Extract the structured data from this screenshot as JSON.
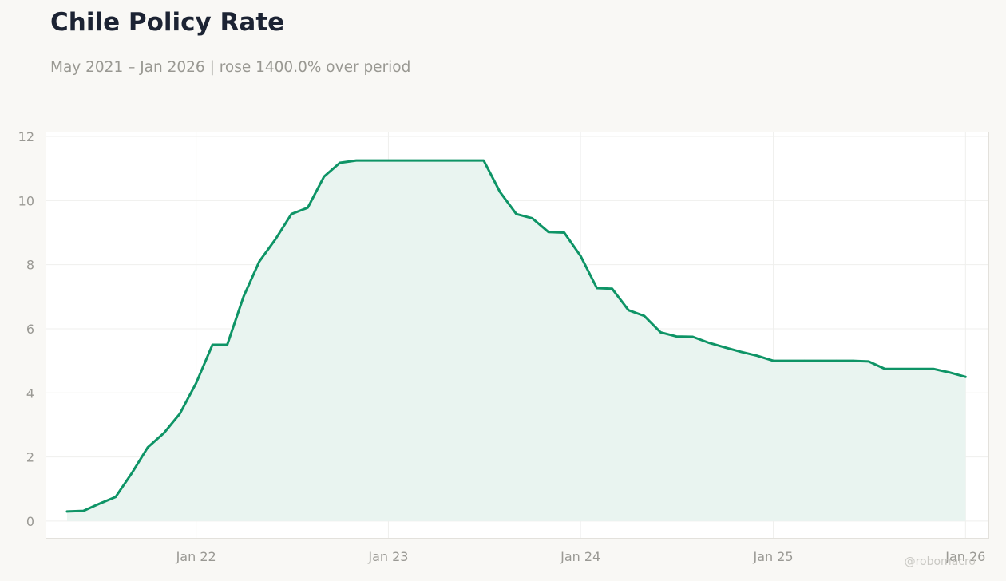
{
  "title": "Chile Policy Rate",
  "subtitle": "May 2021 – Jan 2026 | rose 1400.0% over period",
  "watermark": "@robomacro",
  "colors": {
    "line": "#0e9466",
    "area": "#e9f4f0",
    "background": "#f9f8f5",
    "plot_background": "#ffffff",
    "grid": "#efefed",
    "frame": "#e3e1dc"
  },
  "chart_data": {
    "type": "line",
    "title": "Chile Policy Rate",
    "subtitle": "May 2021 – Jan 2026 | rose 1400.0% over period",
    "xlabel": "",
    "ylabel": "",
    "area_fill": true,
    "grid": true,
    "ylim": [
      -0.55,
      12.15
    ],
    "xlim": [
      "2021-03-21",
      "2026-02-15"
    ],
    "y_ticks": [
      0,
      2,
      4,
      6,
      8,
      10,
      12
    ],
    "x_ticks": [
      {
        "date": "2022-01-01",
        "label": "Jan 22"
      },
      {
        "date": "2023-01-01",
        "label": "Jan 23"
      },
      {
        "date": "2024-01-01",
        "label": "Jan 24"
      },
      {
        "date": "2025-01-01",
        "label": "Jan 25"
      },
      {
        "date": "2026-01-01",
        "label": "Jan 26"
      }
    ],
    "series": [
      {
        "x": [
          "2021-05-01",
          "2021-06-01",
          "2021-07-01",
          "2021-08-01",
          "2021-09-01",
          "2021-10-01",
          "2021-11-01",
          "2021-12-01",
          "2022-01-01",
          "2022-02-01",
          "2022-03-01",
          "2022-04-01",
          "2022-05-01",
          "2022-06-01",
          "2022-07-01",
          "2022-08-01",
          "2022-09-01",
          "2022-10-01",
          "2022-11-01",
          "2022-12-01",
          "2023-01-01",
          "2023-02-01",
          "2023-03-01",
          "2023-04-01",
          "2023-05-01",
          "2023-06-01",
          "2023-07-01",
          "2023-08-01",
          "2023-09-01",
          "2023-10-01",
          "2023-11-01",
          "2023-12-01",
          "2024-01-01",
          "2024-02-01",
          "2024-03-01",
          "2024-04-01",
          "2024-05-01",
          "2024-06-01",
          "2024-07-01",
          "2024-08-01",
          "2024-09-01",
          "2024-10-01",
          "2024-11-01",
          "2024-12-01",
          "2025-01-01",
          "2025-02-01",
          "2025-03-01",
          "2025-04-01",
          "2025-05-01",
          "2025-06-01",
          "2025-07-01",
          "2025-08-01",
          "2025-09-01",
          "2025-10-01",
          "2025-11-01",
          "2025-12-01",
          "2026-01-01"
        ],
        "values": [
          0.3,
          0.32,
          0.54,
          0.75,
          1.5,
          2.3,
          2.75,
          3.35,
          4.3,
          5.5,
          5.5,
          7.0,
          8.1,
          8.8,
          9.58,
          9.78,
          10.75,
          11.18,
          11.25,
          11.25,
          11.25,
          11.25,
          11.25,
          11.25,
          11.25,
          11.25,
          11.25,
          10.27,
          9.58,
          9.45,
          9.02,
          9.0,
          8.27,
          7.27,
          7.25,
          6.58,
          6.4,
          5.89,
          5.76,
          5.75,
          5.56,
          5.42,
          5.28,
          5.16,
          5.0,
          5.0,
          5.0,
          5.0,
          5.0,
          5.0,
          4.98,
          4.75,
          4.75,
          4.75,
          4.75,
          4.64,
          4.5
        ]
      }
    ]
  }
}
